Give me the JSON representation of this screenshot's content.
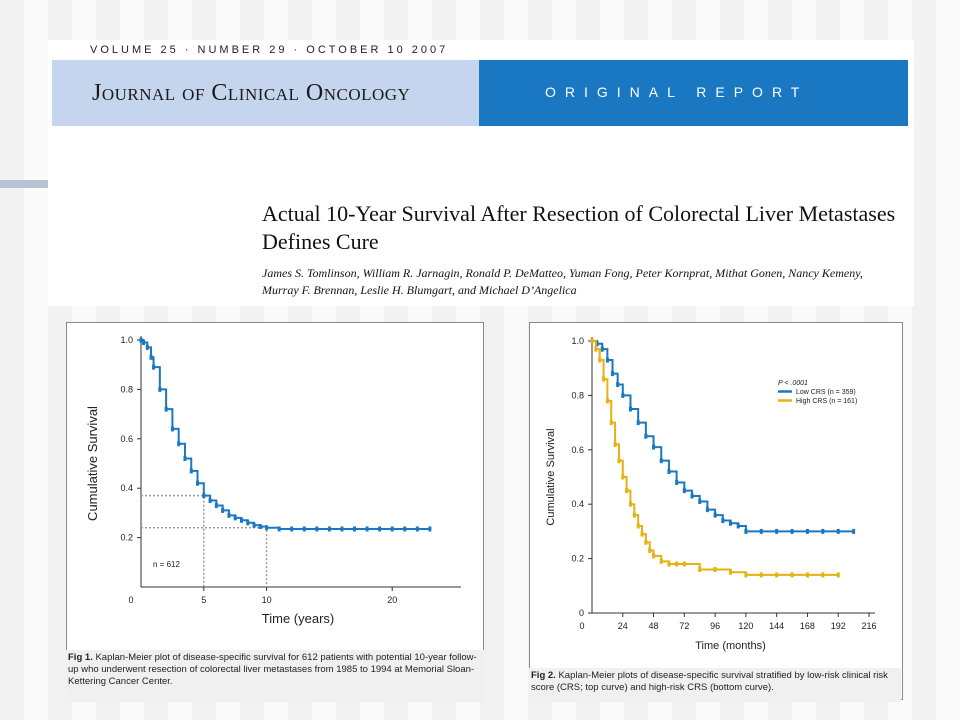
{
  "header": {
    "volume_line": "VOLUME 25 · NUMBER 29 · OCTOBER 10 2007",
    "journal_name": "Journal of Clinical Oncology",
    "report_type": "ORIGINAL REPORT"
  },
  "article": {
    "title": "Actual 10-Year Survival After Resection of Colorectal Liver Metastases Defines Cure",
    "authors": "James S. Tomlinson, William R. Jarnagin, Ronald P. DeMatteo, Yuman Fong, Peter Kornprat, Mithat Gonen, Nancy Kemeny, Murray F. Brennan, Leslie H. Blumgart, and Michael D’Angelica"
  },
  "figures": {
    "fig1": {
      "caption_label": "Fig 1.",
      "caption_text": "Kaplan-Meier plot of disease-specific survival for 612 patients with potential 10-year follow-up who underwent resection of colorectal liver metastases from 1985 to 1994 at Memorial Sloan-Kettering Cancer Center."
    },
    "fig2": {
      "caption_label": "Fig 2.",
      "caption_text": "Kaplan-Meier plots of disease-specific survival stratified by low-risk clinical risk score (CRS; top curve) and high-risk CRS (bottom curve)."
    }
  },
  "colors": {
    "blue_curve": "#1a78c2",
    "yellow_curve": "#e8b010",
    "reference_lines": "#999999"
  },
  "chart_data": [
    {
      "type": "line",
      "xlabel": "Time (years)",
      "ylabel": "Cumulative Survival",
      "xlim": [
        0,
        25
      ],
      "ylim": [
        0,
        1.0
      ],
      "x_ticks": [
        "0",
        "5",
        "10",
        "20"
      ],
      "x_tick_values": [
        0,
        5,
        10,
        20
      ],
      "y_ticks": [
        "1.0",
        "0.8",
        "0.6",
        "0.4",
        "0.2"
      ],
      "y_tick_values": [
        1.0,
        0.8,
        0.6,
        0.4,
        0.2
      ],
      "annotation": "n = 612",
      "reference_points": [
        [
          5,
          0.37
        ],
        [
          10,
          0.24
        ]
      ],
      "series": [
        {
          "color": "#1a78c2",
          "x": [
            0,
            0.2,
            0.5,
            0.8,
            1.0,
            1.5,
            2.0,
            2.5,
            3.0,
            3.5,
            4.0,
            4.5,
            5.0,
            5.5,
            6.0,
            6.5,
            7.0,
            7.5,
            8.0,
            8.5,
            9.0,
            9.5,
            10.0,
            11,
            12,
            13,
            14,
            15,
            16,
            17,
            18,
            19,
            20,
            21,
            22,
            23
          ],
          "y": [
            1.0,
            0.99,
            0.97,
            0.93,
            0.89,
            0.8,
            0.72,
            0.64,
            0.58,
            0.52,
            0.47,
            0.42,
            0.37,
            0.35,
            0.33,
            0.31,
            0.29,
            0.28,
            0.27,
            0.26,
            0.25,
            0.245,
            0.24,
            0.235,
            0.235,
            0.235,
            0.235,
            0.235,
            0.235,
            0.235,
            0.235,
            0.235,
            0.235,
            0.235,
            0.235,
            0.235
          ]
        }
      ]
    },
    {
      "type": "line",
      "xlabel": "Time (months)",
      "ylabel": "Cumulative Survival",
      "xlim": [
        0,
        216
      ],
      "ylim": [
        0,
        1.0
      ],
      "x_ticks": [
        "0",
        "24",
        "48",
        "72",
        "96",
        "120",
        "144",
        "168",
        "192",
        "216"
      ],
      "x_tick_values": [
        0,
        24,
        48,
        72,
        96,
        120,
        144,
        168,
        192,
        216
      ],
      "y_ticks": [
        "1.0",
        "0.8",
        "0.6",
        "0.4",
        "0.2",
        "0"
      ],
      "y_tick_values": [
        1.0,
        0.8,
        0.6,
        0.4,
        0.2,
        0
      ],
      "legend_title": "P < .0001",
      "legend_position": "top-right",
      "series": [
        {
          "name": "Low CRS (n = 359)",
          "color": "#1a78c2",
          "x": [
            0,
            4,
            8,
            12,
            16,
            20,
            24,
            30,
            36,
            42,
            48,
            54,
            60,
            66,
            72,
            78,
            84,
            90,
            96,
            102,
            108,
            114,
            120,
            132,
            144,
            156,
            168,
            180,
            192,
            204
          ],
          "y": [
            1.0,
            0.99,
            0.97,
            0.93,
            0.88,
            0.84,
            0.8,
            0.75,
            0.7,
            0.65,
            0.61,
            0.56,
            0.52,
            0.48,
            0.45,
            0.43,
            0.41,
            0.38,
            0.36,
            0.34,
            0.33,
            0.32,
            0.3,
            0.3,
            0.3,
            0.3,
            0.3,
            0.3,
            0.3,
            0.3
          ]
        },
        {
          "name": "High CRS (n = 161)",
          "color": "#e8b010",
          "x": [
            0,
            3,
            6,
            9,
            12,
            15,
            18,
            21,
            24,
            27,
            30,
            33,
            36,
            39,
            42,
            45,
            48,
            54,
            60,
            66,
            72,
            84,
            96,
            108,
            120,
            132,
            144,
            156,
            168,
            180,
            192
          ],
          "y": [
            1.0,
            0.97,
            0.93,
            0.86,
            0.78,
            0.7,
            0.62,
            0.56,
            0.5,
            0.45,
            0.4,
            0.36,
            0.32,
            0.29,
            0.26,
            0.23,
            0.21,
            0.19,
            0.18,
            0.18,
            0.18,
            0.16,
            0.16,
            0.15,
            0.14,
            0.14,
            0.14,
            0.14,
            0.14,
            0.14,
            0.14
          ]
        }
      ]
    }
  ]
}
